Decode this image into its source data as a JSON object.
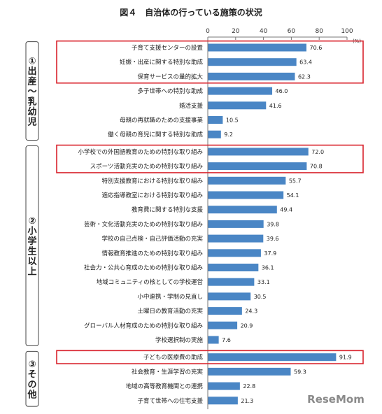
{
  "chart_data": {
    "type": "bar",
    "orientation": "horizontal",
    "title": "図４　自治体の行っている施策の状況",
    "unit": "(%)",
    "xlim": [
      0,
      100
    ],
    "ticks": [
      0,
      20,
      40,
      60,
      80,
      100
    ],
    "color": "#4a86c5",
    "highlight_color": "#d9232d",
    "groups": [
      {
        "label": "①出産～乳幼児",
        "items": [
          {
            "label": "子育て支援センターの設置",
            "value": 70.6,
            "value_label": "70.6",
            "highlight": true
          },
          {
            "label": "妊娠・出産に関する特別な助成",
            "value": 63.4,
            "value_label": "63.4",
            "highlight": true
          },
          {
            "label": "保育サービスの量的拡大",
            "value": 62.3,
            "value_label": "62.3",
            "highlight": true
          },
          {
            "label": "多子世帯への特別な助成",
            "value": 46.0,
            "value_label": "46.0",
            "highlight": false
          },
          {
            "label": "婚活支援",
            "value": 41.6,
            "value_label": "41.6",
            "highlight": false
          },
          {
            "label": "母親の再就職のための支援事業",
            "value": 10.5,
            "value_label": "10.5",
            "highlight": false
          },
          {
            "label": "働く母親の育児に関する特別な助成",
            "value": 9.2,
            "value_label": "9.2",
            "highlight": false
          }
        ]
      },
      {
        "label": "②小学生以上",
        "items": [
          {
            "label": "小学校での外国語教育のための特別な取り組み",
            "value": 72.0,
            "value_label": "72.0",
            "highlight": true
          },
          {
            "label": "スポーツ活動充実のための特別な取り組み",
            "value": 70.8,
            "value_label": "70.8",
            "highlight": true
          },
          {
            "label": "特別支援教育における特別な取り組み",
            "value": 55.7,
            "value_label": "55.7",
            "highlight": false
          },
          {
            "label": "適応指導教室における特別な取り組み",
            "value": 54.1,
            "value_label": "54.1",
            "highlight": false
          },
          {
            "label": "教育費に関する特別な支援",
            "value": 49.4,
            "value_label": "49.4",
            "highlight": false
          },
          {
            "label": "芸術・文化活動充実のための特別な取り組み",
            "value": 39.8,
            "value_label": "39.8",
            "highlight": false
          },
          {
            "label": "学校の自己点検・自己評価活動の充実",
            "value": 39.6,
            "value_label": "39.6",
            "highlight": false
          },
          {
            "label": "情報教育推進のための特別な取り組み",
            "value": 37.9,
            "value_label": "37.9",
            "highlight": false
          },
          {
            "label": "社会力・公共心育成のための特別な取り組み",
            "value": 36.1,
            "value_label": "36.1",
            "highlight": false
          },
          {
            "label": "地域コミュニティの核としての学校運営",
            "value": 33.1,
            "value_label": "33.1",
            "highlight": false
          },
          {
            "label": "小中連携・学制の見直し",
            "value": 30.5,
            "value_label": "30.5",
            "highlight": false
          },
          {
            "label": "土曜日の教育活動の充実",
            "value": 24.3,
            "value_label": "24.3",
            "highlight": false
          },
          {
            "label": "グローバル人材育成のための特別な取り組み",
            "value": 20.9,
            "value_label": "20.9",
            "highlight": false
          },
          {
            "label": "学校選択制の実施",
            "value": 7.6,
            "value_label": "7.6",
            "highlight": false
          }
        ]
      },
      {
        "label": "③その他",
        "items": [
          {
            "label": "子どもの医療費の助成",
            "value": 91.9,
            "value_label": "91.9",
            "highlight": true
          },
          {
            "label": "社会教育・生涯学習の充実",
            "value": 59.3,
            "value_label": "59.3",
            "highlight": false
          },
          {
            "label": "地域の高等教育機関との連携",
            "value": 22.8,
            "value_label": "22.8",
            "highlight": false
          },
          {
            "label": "子育て世帯への住宅支援",
            "value": 21.3,
            "value_label": "21.3",
            "highlight": false
          }
        ]
      }
    ]
  },
  "watermark": "ReseMom"
}
